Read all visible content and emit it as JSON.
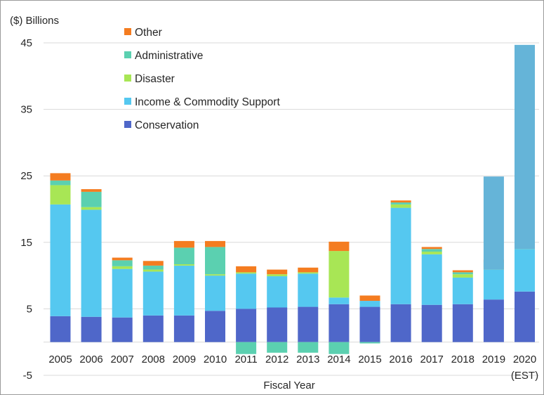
{
  "chart_data": {
    "type": "bar",
    "stacked": true,
    "ylabel": "($) Billions",
    "xlabel": "Fiscal Year",
    "ylim": [
      -5,
      45
    ],
    "yticks": [
      -5,
      5,
      15,
      25,
      35,
      45
    ],
    "grid": true,
    "legend_position": "top-left",
    "categories": [
      "2005",
      "2006",
      "2007",
      "2008",
      "2009",
      "2010",
      "2011",
      "2012",
      "2013",
      "2014",
      "2015",
      "2016",
      "2017",
      "2018",
      "2019",
      "2020"
    ],
    "category_sublabels": [
      "",
      "",
      "",
      "",
      "",
      "",
      "",
      "",
      "",
      "",
      "",
      "",
      "",
      "",
      "",
      "(EST)"
    ],
    "series": [
      {
        "name": "Conservation",
        "color": "#4f67c9",
        "values": [
          3.9,
          3.8,
          3.7,
          4.0,
          4.0,
          4.7,
          5.0,
          5.2,
          5.3,
          5.7,
          5.3,
          5.7,
          5.6,
          5.7,
          6.4,
          7.6
        ]
      },
      {
        "name": "Income & Commodity Support",
        "color": "#55c8f0",
        "values": [
          16.8,
          16.1,
          7.3,
          6.6,
          7.5,
          5.3,
          5.3,
          4.7,
          5.0,
          1.0,
          0.9,
          14.5,
          7.6,
          4.0,
          4.5,
          6.4
        ]
      },
      {
        "name": "Disaster",
        "color": "#a8e655",
        "values": [
          2.9,
          0.4,
          0.4,
          0.3,
          0.2,
          0.2,
          0.2,
          0.3,
          0.2,
          7.0,
          0.0,
          0.5,
          0.4,
          0.5,
          0.4,
          0.4
        ]
      },
      {
        "name": "Administrative",
        "color": "#5bd0b0",
        "values": [
          0.7,
          2.3,
          0.9,
          0.6,
          2.5,
          4.1,
          -1.8,
          -1.6,
          -1.6,
          -1.8,
          -0.2,
          0.3,
          0.4,
          0.3,
          0.7,
          0.4
        ]
      },
      {
        "name": "Other",
        "color": "#f47c20",
        "values": [
          1.1,
          0.4,
          0.4,
          0.7,
          1.0,
          0.9,
          0.9,
          0.7,
          0.7,
          1.4,
          0.8,
          0.3,
          0.3,
          0.3,
          0.4,
          0.3
        ]
      }
    ],
    "overlays": [
      {
        "category": "2019",
        "from": 10.9,
        "to": 24.9,
        "color": "#65b4d8"
      },
      {
        "category": "2020",
        "from": 14.0,
        "to": 44.7,
        "color": "#65b4d8"
      }
    ]
  }
}
